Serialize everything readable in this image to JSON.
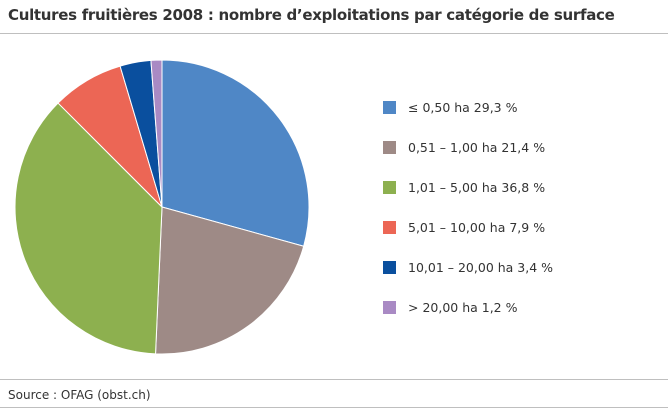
{
  "chart_data": {
    "type": "pie",
    "title": "Cultures fruitières 2008 : nombre d’exploitations par catégorie de surface",
    "categories": [
      "≤ 0,50 ha",
      "0,51 – 1,00 ha",
      "1,01 – 5,00 ha",
      "5,01 – 10,00 ha",
      "10,01 – 20,00 ha",
      "> 20,00 ha"
    ],
    "values": [
      29.3,
      21.4,
      36.8,
      7.9,
      3.4,
      1.2
    ],
    "labels": [
      "≤ 0,50 ha 29,3 %",
      "0,51 – 1,00 ha 21,4 %",
      "1,01 – 5,00 ha 36,8 %",
      "5,01 – 10,00 ha 7,9 %",
      "10,01 – 20,00 ha 3,4 %",
      "> 20,00 ha 1,2 %"
    ],
    "colors": [
      "#4f87c6",
      "#9e8a86",
      "#8db04f",
      "#ec6655",
      "#0a4f9e",
      "#a98ac4"
    ],
    "start": "12 o'clock",
    "direction": "clockwise",
    "legend_position": "right"
  },
  "source": "Source : OFAG (obst.ch)"
}
